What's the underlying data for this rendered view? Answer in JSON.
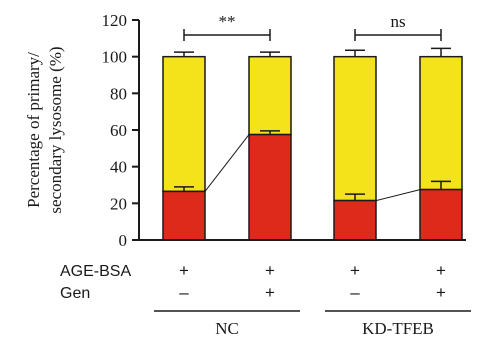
{
  "chart_data": {
    "type": "bar",
    "stacked": true,
    "ylabel_lines": [
      "Percentage of primary/",
      "secondary lysosome (%)"
    ],
    "ylim": [
      0,
      120
    ],
    "yticks": [
      "0",
      "20",
      "40",
      "60",
      "80",
      "100",
      "120"
    ],
    "ytick_values": [
      0,
      20,
      40,
      60,
      80,
      100,
      120
    ],
    "series": [
      {
        "color": "#dd2a1b",
        "values": [
          26.5,
          57.5,
          21.5,
          27.5
        ],
        "errors": [
          2.5,
          2.0,
          3.5,
          4.5
        ]
      },
      {
        "color": "#f4e21b",
        "values": [
          73.5,
          42.5,
          78.5,
          72.5
        ],
        "errors": [
          2.5,
          2.5,
          3.5,
          4.5
        ]
      }
    ],
    "conditions": [
      {
        "label": "AGE-BSA",
        "signs": [
          "+",
          "+",
          "+",
          "+"
        ]
      },
      {
        "label": "Gen",
        "signs": [
          "–",
          "+",
          "–",
          "+"
        ]
      }
    ],
    "groups": [
      {
        "label": "NC",
        "bars": [
          0,
          1
        ]
      },
      {
        "label": "KD-TFEB",
        "bars": [
          2,
          3
        ]
      }
    ],
    "significance": [
      {
        "bars": [
          0,
          1
        ],
        "label": "**"
      },
      {
        "bars": [
          2,
          3
        ],
        "label": "ns"
      }
    ],
    "connector_lines": [
      [
        0,
        1
      ],
      [
        2,
        3
      ]
    ]
  }
}
